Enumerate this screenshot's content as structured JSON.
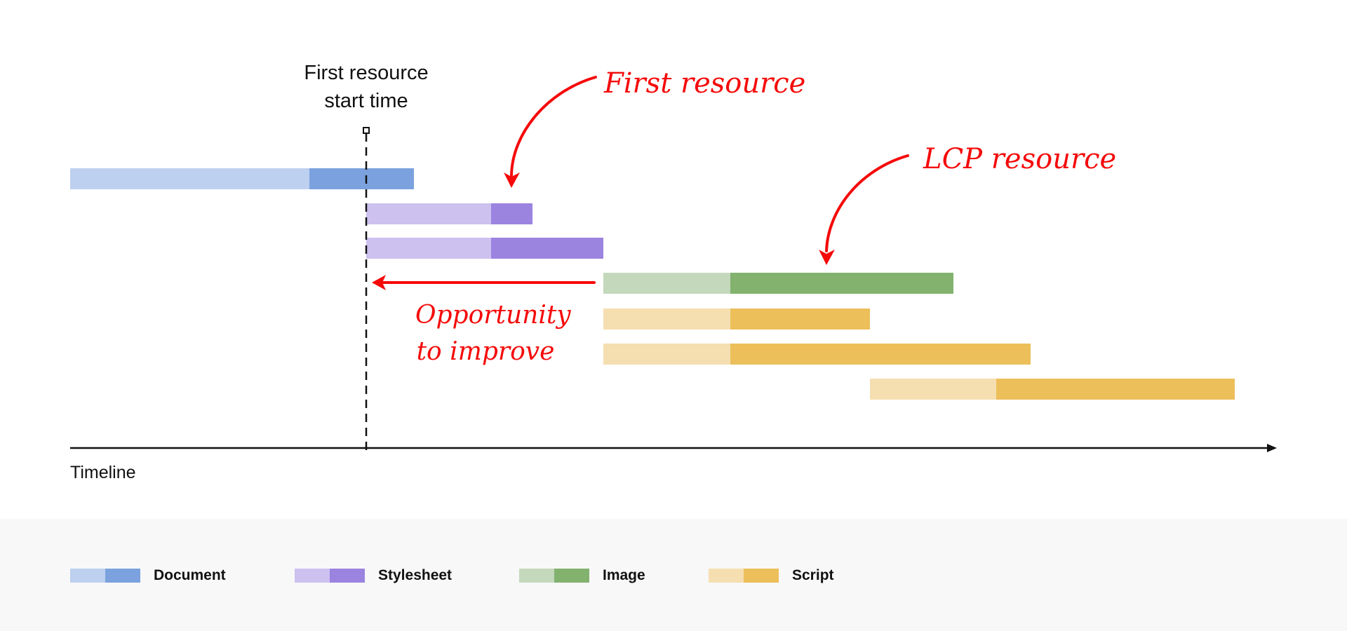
{
  "annotations": {
    "start_line_label_1": "First resource",
    "start_line_label_2": "start time",
    "first_resource": "First resource",
    "lcp_resource": "LCP resource",
    "opportunity_1": "Opportunity",
    "opportunity_2": "to improve"
  },
  "axis": {
    "label": "Timeline"
  },
  "rows": [
    {
      "type": "Document"
    },
    {
      "type": "Stylesheet"
    },
    {
      "type": "Stylesheet"
    },
    {
      "type": "Image"
    },
    {
      "type": "Script"
    },
    {
      "type": "Script"
    },
    {
      "type": "Script"
    }
  ],
  "legend": [
    {
      "label": "Document",
      "light": "#bdd0f0",
      "dark": "#7ba2de"
    },
    {
      "label": "Stylesheet",
      "light": "#cdc1f0",
      "dark": "#9b83e0"
    },
    {
      "label": "Image",
      "light": "#c4d8bc",
      "dark": "#82b26e"
    },
    {
      "label": "Script",
      "light": "#f5deb0",
      "dark": "#ecbf5a"
    }
  ],
  "colors": {
    "annotation": "#f50a0a",
    "axis": "#111111"
  }
}
